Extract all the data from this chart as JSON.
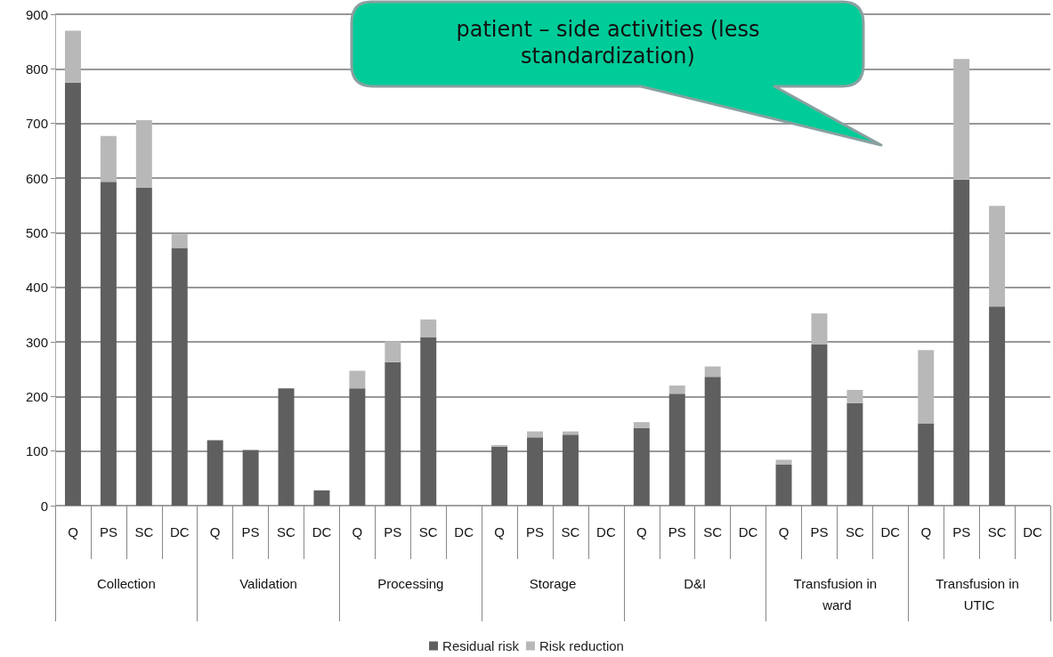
{
  "chart_data": {
    "type": "bar",
    "stacked": true,
    "categories": [
      "Q",
      "PS",
      "SC",
      "DC",
      "Q",
      "PS",
      "SC",
      "DC",
      "Q",
      "PS",
      "SC",
      "DC",
      "Q",
      "PS",
      "SC",
      "DC",
      "Q",
      "PS",
      "SC",
      "DC",
      "Q",
      "PS",
      "SC",
      "DC",
      "Q",
      "PS",
      "SC",
      "DC"
    ],
    "series": [
      {
        "name": "Residual risk",
        "color": "#5f5f5f",
        "values": [
          775,
          593,
          582,
          472,
          120,
          102,
          215,
          28,
          215,
          263,
          308,
          0,
          108,
          125,
          130,
          0,
          142,
          205,
          236,
          0,
          75,
          295,
          188,
          0,
          151,
          597,
          365,
          0
        ]
      },
      {
        "name": "Risk reduction",
        "color": "#b8b8b8",
        "values": [
          95,
          84,
          124,
          25,
          0,
          0,
          0,
          0,
          32,
          38,
          33,
          0,
          3,
          11,
          6,
          0,
          11,
          15,
          19,
          0,
          9,
          57,
          24,
          0,
          134,
          221,
          184,
          0
        ]
      }
    ],
    "ylim": [
      0,
      900
    ],
    "yticks": [
      0,
      100,
      200,
      300,
      400,
      500,
      600,
      700,
      800,
      900
    ],
    "grid": "y",
    "legend": "bottom",
    "annotations": [
      "patient – side activities (less standardization)",
      "Collection",
      "Validation",
      "Processing",
      "Storage",
      "D&I",
      "Transfusion in ward",
      "Transfusion in UTIC"
    ]
  }
}
